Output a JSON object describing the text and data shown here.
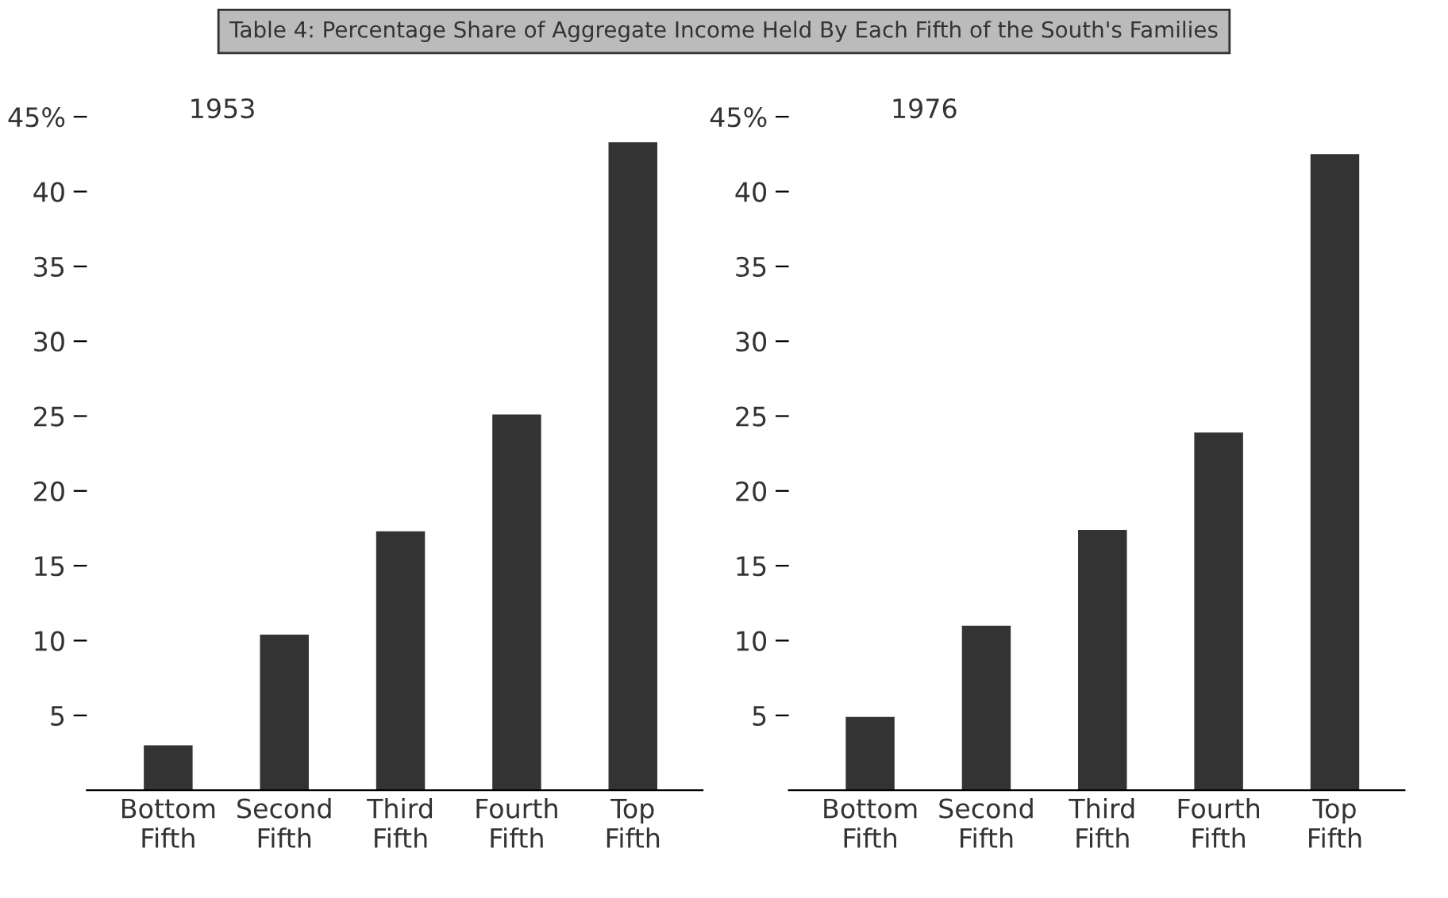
{
  "chart_data": [
    {
      "type": "bar",
      "title": "Table 4: Percentage Share of Aggregate Income Held By Each Fifth of the South's Families",
      "subtitle": "1953",
      "categories": [
        "Bottom\nFifth",
        "Second\nFifth",
        "Third\nFifth",
        "Fourth\nFifth",
        "Top\nFifth"
      ],
      "values": [
        3.0,
        10.4,
        17.3,
        25.1,
        43.3
      ],
      "color": "#333333",
      "ylim": [
        0,
        45
      ],
      "yticks": [
        5,
        10,
        15,
        20,
        25,
        30,
        35,
        40,
        {
          "value": 45,
          "label": "45%"
        }
      ],
      "grid": false
    },
    {
      "type": "bar",
      "subtitle": "1976",
      "categories": [
        "Bottom\nFifth",
        "Second\nFifth",
        "Third\nFifth",
        "Fourth\nFifth",
        "Top\nFifth"
      ],
      "values": [
        4.9,
        11.0,
        17.4,
        23.9,
        42.5
      ],
      "color": "#333333",
      "ylim": [
        0,
        45
      ],
      "yticks": [
        5,
        10,
        15,
        20,
        25,
        30,
        35,
        40,
        {
          "value": 45,
          "label": "45%"
        }
      ],
      "grid": false
    }
  ]
}
